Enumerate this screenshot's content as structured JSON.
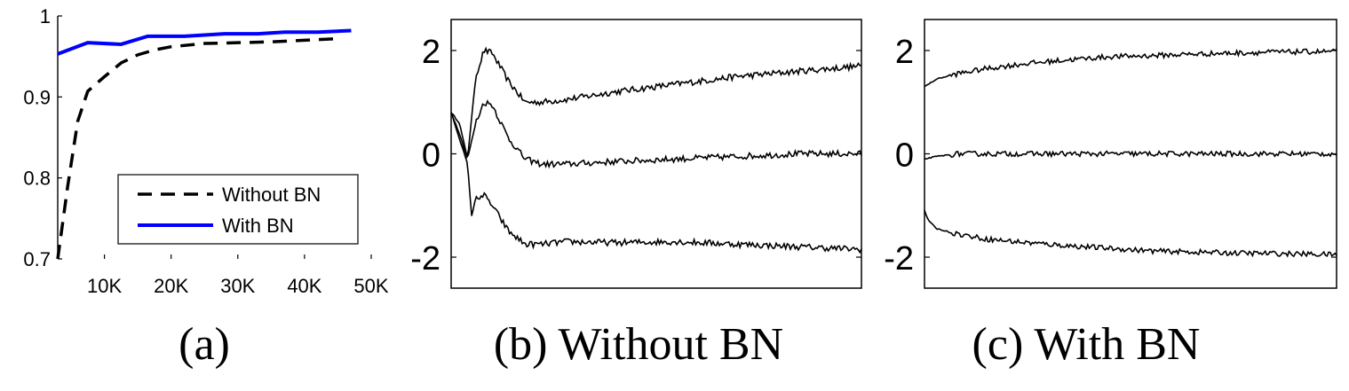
{
  "colors": {
    "with_bn": "#0000ff",
    "without_bn": "#000000",
    "trace": "#000000"
  },
  "chart_data": [
    {
      "id": "a",
      "type": "line",
      "caption": "(a)",
      "xlim": [
        3000,
        50000
      ],
      "ylim": [
        0.7,
        1
      ],
      "xticks": [
        10000,
        20000,
        30000,
        40000,
        50000
      ],
      "xtick_labels": [
        "10K",
        "20K",
        "30K",
        "40K",
        "50K"
      ],
      "yticks": [
        0.7,
        0.8,
        0.9,
        1
      ],
      "ytick_labels": [
        "0.7",
        "0.8",
        "0.9",
        "1"
      ],
      "legend_position": "lower-right",
      "series": [
        {
          "name": "Without BN",
          "style": "dashed",
          "x": [
            3000,
            4500,
            6000,
            7500,
            10000,
            12500,
            15000,
            17500,
            20000,
            25000,
            30000,
            35000,
            40000,
            45000
          ],
          "y": [
            0.7,
            0.79,
            0.87,
            0.907,
            0.925,
            0.942,
            0.952,
            0.958,
            0.962,
            0.966,
            0.967,
            0.968,
            0.97,
            0.972
          ]
        },
        {
          "name": "With BN",
          "style": "solid",
          "x": [
            3000,
            7500,
            12500,
            16500,
            22000,
            28000,
            33000,
            37000,
            42000,
            47000
          ],
          "y": [
            0.953,
            0.967,
            0.965,
            0.975,
            0.975,
            0.978,
            0.978,
            0.98,
            0.98,
            0.982
          ]
        }
      ]
    },
    {
      "id": "b",
      "type": "line",
      "caption": "(b) Without BN",
      "xlim": [
        0,
        100
      ],
      "ylim": [
        -2.6,
        2.6
      ],
      "yticks": [
        2,
        0,
        -2
      ],
      "ytick_labels": [
        "2",
        "0",
        "-2"
      ],
      "series": [
        {
          "x": [
            0,
            2,
            4,
            6,
            8,
            10,
            14,
            18,
            22,
            28,
            40,
            55,
            70,
            85,
            100
          ],
          "y": [
            0.8,
            0.6,
            -0.1,
            1.5,
            2.0,
            1.95,
            1.4,
            1.0,
            1.0,
            1.05,
            1.2,
            1.35,
            1.5,
            1.6,
            1.7
          ]
        },
        {
          "x": [
            0,
            2,
            4,
            6,
            8,
            10,
            14,
            18,
            22,
            28,
            40,
            55,
            70,
            85,
            100
          ],
          "y": [
            0.8,
            0.4,
            -0.1,
            0.6,
            1.0,
            0.95,
            0.3,
            -0.1,
            -0.2,
            -0.2,
            -0.15,
            -0.1,
            -0.05,
            0.0,
            0.0
          ]
        },
        {
          "x": [
            0,
            2,
            4,
            5,
            6,
            8,
            10,
            14,
            18,
            22,
            28,
            40,
            55,
            70,
            85,
            100
          ],
          "y": [
            0.8,
            0.3,
            -0.2,
            -1.2,
            -0.85,
            -0.8,
            -1.0,
            -1.5,
            -1.75,
            -1.75,
            -1.7,
            -1.72,
            -1.7,
            -1.75,
            -1.8,
            -1.85
          ]
        }
      ]
    },
    {
      "id": "c",
      "type": "line",
      "caption": "(c) With BN",
      "xlim": [
        0,
        100
      ],
      "ylim": [
        -2.6,
        2.6
      ],
      "yticks": [
        2,
        0,
        -2
      ],
      "ytick_labels": [
        "2",
        "0",
        "-2"
      ],
      "series": [
        {
          "x": [
            0,
            3,
            8,
            15,
            25,
            35,
            45,
            55,
            65,
            75,
            85,
            100
          ],
          "y": [
            1.3,
            1.45,
            1.55,
            1.65,
            1.75,
            1.82,
            1.88,
            1.9,
            1.93,
            1.95,
            1.97,
            1.98
          ]
        },
        {
          "x": [
            0,
            3,
            8,
            15,
            25,
            35,
            45,
            55,
            65,
            75,
            85,
            100
          ],
          "y": [
            -0.1,
            -0.05,
            0.0,
            0.0,
            0.0,
            0.0,
            0.0,
            0.0,
            0.0,
            0.0,
            0.0,
            0.0
          ]
        },
        {
          "x": [
            0,
            1,
            3,
            8,
            15,
            25,
            35,
            45,
            55,
            65,
            75,
            85,
            100
          ],
          "y": [
            -1.1,
            -1.3,
            -1.45,
            -1.55,
            -1.65,
            -1.72,
            -1.78,
            -1.83,
            -1.88,
            -1.9,
            -1.92,
            -1.93,
            -1.95
          ]
        }
      ]
    }
  ]
}
